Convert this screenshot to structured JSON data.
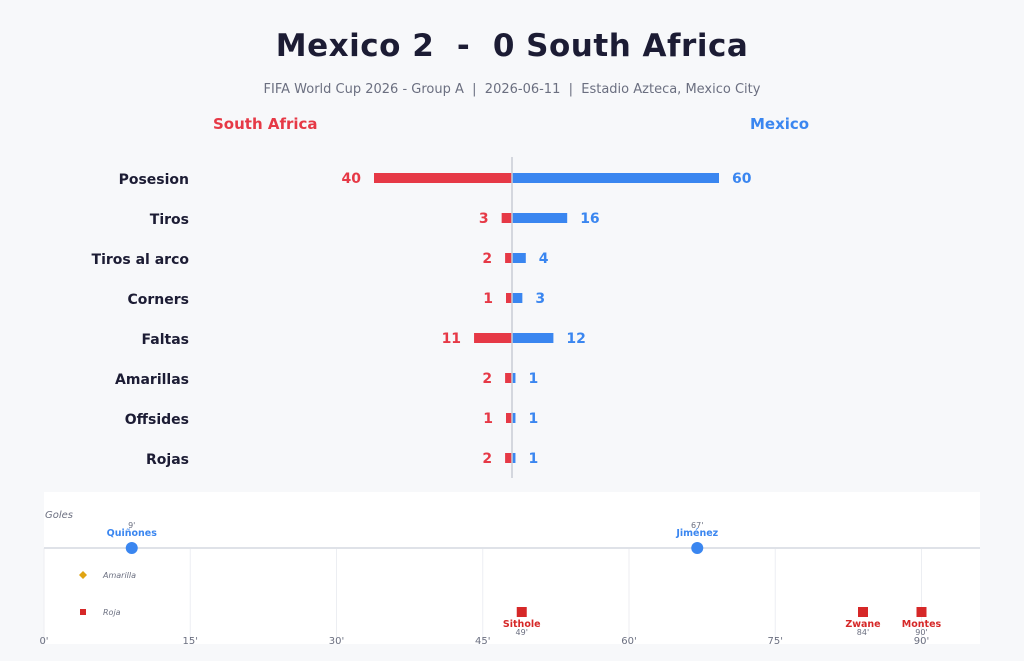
{
  "header": {
    "title": "Mexico 2  -  0 South Africa",
    "subtitle": "FIFA World Cup 2026 - Group A  |  2026-06-11  |  Estadio Azteca, Mexico City"
  },
  "teams": {
    "away": {
      "name": "South Africa",
      "color": "#e63946"
    },
    "home": {
      "name": "Mexico",
      "color": "#3a86f0"
    }
  },
  "chart_data": [
    {
      "type": "bar",
      "orientation": "horizontal-diverging",
      "categories": [
        "Posesion",
        "Tiros",
        "Tiros al arco",
        "Corners",
        "Faltas",
        "Amarillas",
        "Offsides",
        "Rojas"
      ],
      "series": [
        {
          "name": "South Africa",
          "values": [
            40,
            3,
            2,
            1,
            11,
            2,
            1,
            2
          ]
        },
        {
          "name": "Mexico",
          "values": [
            60,
            16,
            4,
            3,
            12,
            1,
            1,
            1
          ]
        }
      ]
    },
    {
      "type": "scatter",
      "label": "Goles",
      "xlim": [
        0,
        96
      ],
      "xticks": [
        "0'",
        "15'",
        "30'",
        "45'",
        "60'",
        "75'",
        "90'"
      ],
      "xtick_values": [
        0,
        15,
        30,
        45,
        60,
        75,
        90
      ],
      "goals": [
        {
          "minute": 9,
          "minute_label": "9'",
          "player": "Quiñones",
          "team": "Mexico"
        },
        {
          "minute": 67,
          "minute_label": "67'",
          "player": "Jiménez",
          "team": "Mexico"
        }
      ],
      "cards": [
        {
          "minute": 49,
          "minute_label": "49'",
          "player": "Sithole",
          "type": "red"
        },
        {
          "minute": 84,
          "minute_label": "84'",
          "player": "Zwane",
          "type": "red"
        },
        {
          "minute": 90,
          "minute_label": "90'",
          "player": "Montes",
          "type": "red"
        }
      ],
      "legend": [
        {
          "label": "Amarilla",
          "color": "#e0a412",
          "marker": "diamond"
        },
        {
          "label": "Roja",
          "color": "#d62828",
          "marker": "square"
        }
      ]
    }
  ]
}
